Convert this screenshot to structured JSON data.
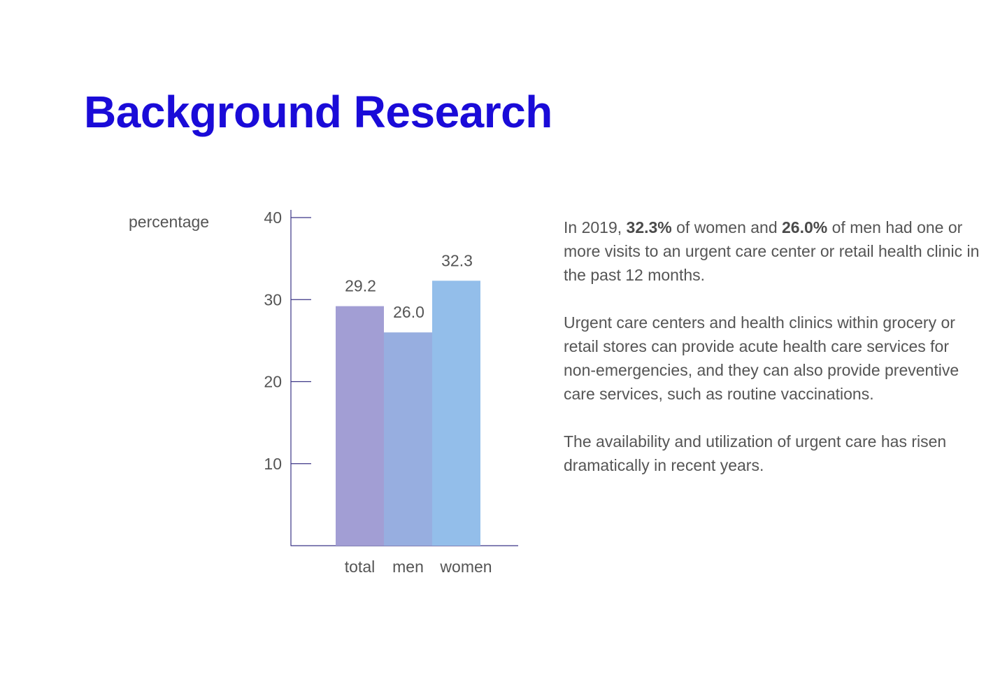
{
  "title": "Background Research",
  "chart_data": {
    "type": "bar",
    "ylabel": "percentage",
    "ylim": [
      0,
      40
    ],
    "yticks": [
      10,
      20,
      30,
      40
    ],
    "categories": [
      "total",
      "men",
      "women"
    ],
    "values": [
      29.2,
      26.0,
      32.3
    ],
    "value_labels": [
      "29.2",
      "26.0",
      "32.3"
    ],
    "colors": [
      "#a29ed4",
      "#97aee0",
      "#93beea"
    ],
    "axis_color": "#3b3586",
    "grid": false
  },
  "text": {
    "p1": {
      "intro": "In 2019, ",
      "women_pct": "32.3%",
      "mid": " of women and ",
      "men_pct": "26.0%",
      "end": " of men had one or more visits to an urgent care center or retail health clinic in the past 12 months."
    },
    "p2": "Urgent care centers and health clinics within grocery or retail stores can provide acute health care services for non-emergencies, and they can also provide preventive care services, such as routine vaccinations.",
    "p3": "The availability and utilization of urgent care has risen dramatically in recent years."
  }
}
